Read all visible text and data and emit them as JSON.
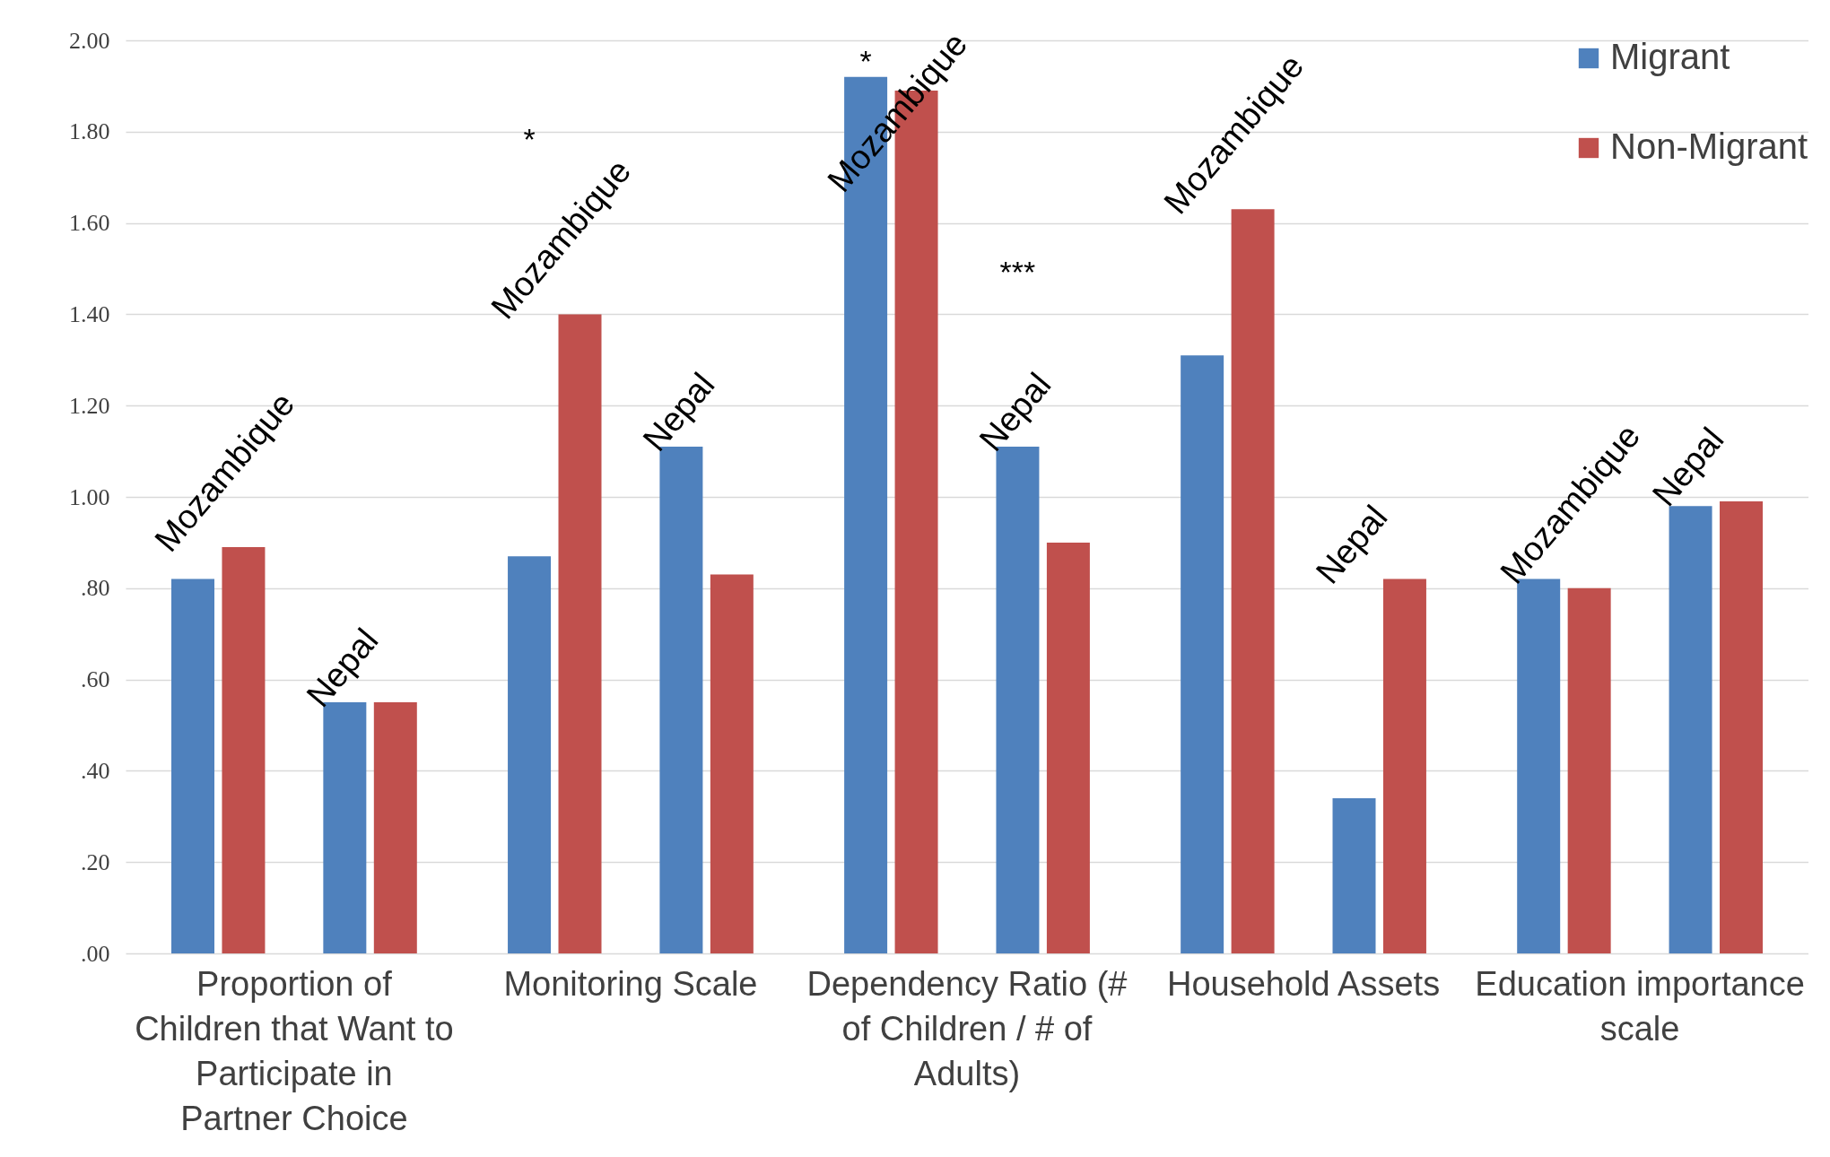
{
  "chart_data": {
    "type": "bar",
    "categories": [
      "Proportion of Children that Want to Participate in Partner Choice",
      "Monitoring Scale",
      "Dependency Ratio (# of Children / # of Adults)",
      "Household Assets",
      "Education importance scale"
    ],
    "series": [
      {
        "name": "Migrant",
        "color": "#4f81bd",
        "values": [
          0.82,
          0.87,
          1.92,
          1.31,
          0.82
        ]
      },
      {
        "name": "Non-Migrant",
        "color": "#c0504d",
        "values": [
          0.89,
          1.4,
          1.89,
          1.63,
          0.8
        ]
      },
      {
        "color": "#4f81bd",
        "values": [
          0.55,
          1.11,
          1.11,
          0.34,
          0.98
        ]
      },
      {
        "color": "#c0504d",
        "values": [
          0.55,
          0.83,
          0.9,
          0.82,
          0.99
        ]
      }
    ],
    "ylim": [
      0,
      2
    ],
    "yticks": [
      {
        "value": 0,
        "label": ".00"
      },
      {
        "value": 0.2,
        "label": ".20"
      },
      {
        "value": 0.4,
        "label": ".40"
      },
      {
        "value": 0.6,
        "label": ".60"
      },
      {
        "value": 0.8,
        "label": ".80"
      },
      {
        "value": 1,
        "label": "1.00"
      },
      {
        "value": 1.2,
        "label": "1.20"
      },
      {
        "value": 1.4,
        "label": "1.40"
      },
      {
        "value": 1.6,
        "label": "1.60"
      },
      {
        "value": 1.8,
        "label": "1.80"
      },
      {
        "value": 2,
        "label": "2.00"
      }
    ],
    "grid": "y",
    "legend": "top right",
    "annotations": [
      "Mozambique",
      "Nepal",
      "Mozambique",
      "Nepal",
      "Mozambique",
      "Nepal",
      "Mozambique",
      "Nepal",
      "Mozambique",
      "Nepal",
      "*",
      "*",
      "***"
    ]
  }
}
